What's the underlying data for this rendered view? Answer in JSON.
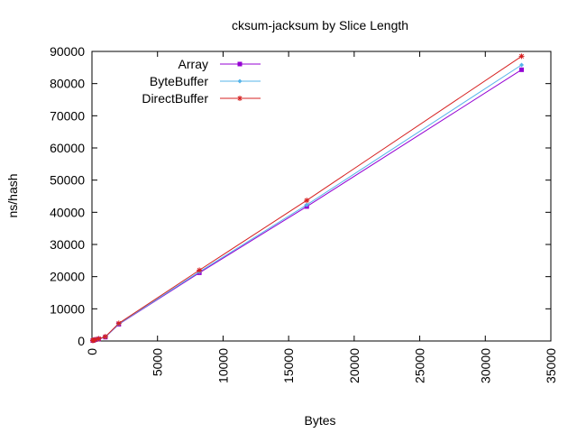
{
  "chart_data": {
    "type": "line",
    "title": "cksum-jacksum by Slice Length",
    "xlabel": "Bytes",
    "ylabel": "ns/hash",
    "xlim": [
      0,
      35000
    ],
    "ylim": [
      0,
      90000
    ],
    "xticks": [
      "0",
      "5000",
      "10000",
      "15000",
      "20000",
      "25000",
      "30000",
      "35000"
    ],
    "yticks": [
      "0",
      "10000",
      "20000",
      "30000",
      "40000",
      "50000",
      "60000",
      "70000",
      "80000",
      "90000"
    ],
    "grid": false,
    "legend_position": "top-left",
    "series": [
      {
        "name": "Array",
        "color": "#9400d3",
        "marker": "square",
        "x": [
          64,
          128,
          256,
          512,
          1024,
          2048,
          8192,
          16384,
          32768
        ],
        "y": [
          130,
          230,
          400,
          620,
          1200,
          5200,
          21200,
          41800,
          84300
        ]
      },
      {
        "name": "ByteBuffer",
        "color": "#56b4e9",
        "marker": "diamond",
        "x": [
          64,
          128,
          256,
          512,
          1024,
          2048,
          8192,
          16384,
          32768
        ],
        "y": [
          140,
          240,
          420,
          650,
          1250,
          5300,
          21500,
          42300,
          85800
        ]
      },
      {
        "name": "DirectBuffer",
        "color": "#d62020",
        "marker": "star",
        "x": [
          64,
          128,
          256,
          512,
          1024,
          2048,
          8192,
          16384,
          32768
        ],
        "y": [
          150,
          260,
          450,
          700,
          1350,
          5500,
          22000,
          43700,
          88500
        ]
      }
    ]
  }
}
